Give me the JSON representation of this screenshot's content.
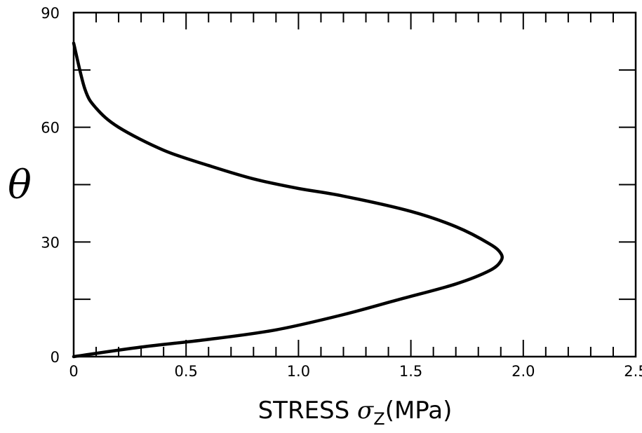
{
  "chart_data": {
    "type": "line",
    "xlabel_prefix": "STRESS ",
    "xlabel_symbol": "σ",
    "xlabel_subscript": "Z",
    "xlabel_suffix": "(MPa)",
    "ylabel": "θ",
    "xlim": [
      0,
      2.5
    ],
    "ylim": [
      0,
      90
    ],
    "x_tick_labels": [
      "0",
      "0.5",
      "1.0",
      "1.5",
      "2.0",
      "2.5"
    ],
    "y_tick_labels": [
      "0",
      "30",
      "60",
      "90"
    ],
    "grid": false,
    "series": [
      {
        "x": [
          0.0,
          0.3,
          0.6,
          0.9,
          1.2,
          1.45,
          1.7,
          1.85,
          1.9,
          1.9,
          1.85,
          1.7,
          1.5,
          1.2,
          1.0,
          0.8,
          0.6,
          0.4,
          0.2,
          0.1,
          0.05,
          0.0
        ],
        "y": [
          0,
          2.5,
          4.5,
          7,
          11,
          15,
          19,
          22.5,
          25,
          27,
          29.5,
          34,
          38,
          42,
          44,
          46.5,
          50,
          54,
          60,
          65,
          70,
          82
        ]
      }
    ]
  }
}
